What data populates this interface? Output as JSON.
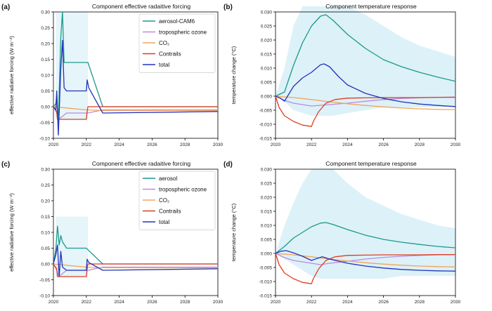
{
  "chart_data": [
    {
      "type": "line",
      "panel_label": "(a)",
      "title": "Component effective radaitive forcing",
      "ylabel": "effective radiative forcing (W m⁻²)",
      "xlim": [
        2020,
        2030
      ],
      "ylim": [
        -0.1,
        0.3
      ],
      "xticks": [
        "2020",
        "2022",
        "2024",
        "2026",
        "2028",
        "2030"
      ],
      "yticks": [
        "-0.10",
        "-0.05",
        "0.00",
        "0.05",
        "0.10",
        "0.15",
        "0.20",
        "0.25",
        "0.30"
      ],
      "legend": "top-right",
      "series": [
        {
          "name": "aerosol-CAM6",
          "color": "#1a9a8a",
          "x": [
            2020,
            2020.15,
            2020.2,
            2020.3,
            2020.45,
            2020.55,
            2020.65,
            2020.8,
            2022.0,
            2022.1,
            2023.0,
            2030
          ],
          "y": [
            0,
            0.01,
            0.04,
            -0.05,
            0.22,
            0.3,
            0.14,
            0.14,
            0.14,
            0.14,
            0.0,
            0.0
          ],
          "band": [
            -0.04,
            0.3
          ]
        },
        {
          "name": "tropospheric ozone",
          "color": "#b98be0",
          "x": [
            2020,
            2020.2,
            2020.3,
            2020.45,
            2020.8,
            2022.0,
            2022.1,
            2023.0,
            2030
          ],
          "y": [
            0,
            -0.02,
            -0.035,
            -0.035,
            -0.02,
            -0.02,
            -0.02,
            -0.01,
            -0.01
          ]
        },
        {
          "name": "CO₂",
          "color": "#f2a55a",
          "x": [
            2020,
            2021,
            2022,
            2023,
            2025,
            2027,
            2030
          ],
          "y": [
            0,
            -0.005,
            -0.01,
            -0.012,
            -0.012,
            -0.012,
            -0.012
          ]
        },
        {
          "name": "Contrails",
          "color": "#e03c1f",
          "x": [
            2020,
            2020.2,
            2020.25,
            2022.0,
            2022.05,
            2022.1,
            2030
          ],
          "y": [
            0,
            -0.015,
            -0.04,
            -0.04,
            -0.015,
            0.0,
            0.0
          ]
        },
        {
          "name": "total",
          "color": "#2233bb",
          "x": [
            2020,
            2020.15,
            2020.2,
            2020.3,
            2020.45,
            2020.55,
            2020.65,
            2020.8,
            2022.0,
            2022.05,
            2022.15,
            2023.0,
            2030
          ],
          "y": [
            0,
            -0.01,
            0.05,
            -0.09,
            0.12,
            0.21,
            0.06,
            0.05,
            0.05,
            0.085,
            0.06,
            -0.02,
            -0.015
          ]
        }
      ]
    },
    {
      "type": "line",
      "panel_label": "(b)",
      "title": "Component temperature response",
      "ylabel": "temperature change (°C)",
      "xlim": [
        2020,
        2030
      ],
      "ylim": [
        -0.015,
        0.03
      ],
      "xticks": [
        "2020",
        "2022",
        "2024",
        "2026",
        "2028",
        "2030"
      ],
      "yticks": [
        "-0.015",
        "-0.010",
        "-0.005",
        "0.000",
        "0.005",
        "0.010",
        "0.015",
        "0.020",
        "0.025",
        "0.030"
      ],
      "series": [
        {
          "color": "#1a9a8a",
          "x": [
            2020,
            2020.5,
            2021,
            2021.5,
            2022,
            2022.5,
            2022.8,
            2023.2,
            2024,
            2025,
            2026,
            2027,
            2028,
            2029,
            2030
          ],
          "y": [
            0,
            0.0015,
            0.011,
            0.019,
            0.025,
            0.0285,
            0.029,
            0.027,
            0.022,
            0.017,
            0.013,
            0.0105,
            0.0085,
            0.0068,
            0.0053
          ],
          "band_lower": [
            0,
            -0.002,
            -0.005,
            -0.006,
            -0.007,
            -0.007,
            -0.007,
            -0.007,
            -0.006,
            -0.005,
            -0.004,
            -0.004,
            -0.004,
            -0.004,
            -0.004
          ],
          "band_upper": [
            0,
            0.01,
            0.025,
            0.032,
            0.032,
            0.032,
            0.032,
            0.032,
            0.032,
            0.029,
            0.025,
            0.021,
            0.018,
            0.016,
            0.014
          ]
        },
        {
          "color": "#b98be0",
          "x": [
            2020,
            2020.5,
            2021,
            2022,
            2023,
            2024,
            2025,
            2026,
            2027,
            2028,
            2029,
            2030
          ],
          "y": [
            0,
            -0.0015,
            -0.0025,
            -0.0035,
            -0.003,
            -0.0025,
            -0.0018,
            -0.0012,
            -0.0008,
            -0.0006,
            -0.0004,
            -0.0003
          ]
        },
        {
          "color": "#f2a55a",
          "x": [
            2020,
            2021,
            2022,
            2023,
            2024,
            2025,
            2026,
            2027,
            2028,
            2029,
            2030
          ],
          "y": [
            0,
            -0.0005,
            -0.0012,
            -0.002,
            -0.0027,
            -0.0033,
            -0.0038,
            -0.0042,
            -0.0045,
            -0.0047,
            -0.0048
          ]
        },
        {
          "color": "#e03c1f",
          "x": [
            2020,
            2020.2,
            2020.5,
            2021,
            2021.5,
            2022,
            2022.1,
            2022.4,
            2022.8,
            2023.3,
            2024,
            2025,
            2026,
            2027,
            2028,
            2029,
            2030
          ],
          "y": [
            0,
            -0.004,
            -0.007,
            -0.009,
            -0.0103,
            -0.0108,
            -0.009,
            -0.0055,
            -0.0025,
            -0.0012,
            -0.0007,
            -0.0006,
            -0.0005,
            -0.0005,
            -0.0005,
            -0.0004,
            -0.0004
          ]
        },
        {
          "color": "#2233bb",
          "x": [
            2020,
            2020.3,
            2020.5,
            2021,
            2021.5,
            2022,
            2022.5,
            2022.7,
            2023,
            2023.5,
            2024,
            2025,
            2026,
            2027,
            2028,
            2029,
            2030
          ],
          "y": [
            0,
            -0.0008,
            -0.0018,
            0.0035,
            0.0065,
            0.0085,
            0.0112,
            0.0115,
            0.0105,
            0.007,
            0.004,
            0.001,
            -0.0008,
            -0.002,
            -0.0028,
            -0.0033,
            -0.0037
          ]
        }
      ]
    },
    {
      "type": "line",
      "panel_label": "(c)",
      "title": "Component effective radaitive forcing",
      "ylabel": "effective radiative forcing (W m⁻²)",
      "xlim": [
        2020,
        2030
      ],
      "ylim": [
        -0.1,
        0.3
      ],
      "xticks": [
        "2020",
        "2022",
        "2024",
        "2026",
        "2028",
        "2030"
      ],
      "yticks": [
        "-0.10",
        "-0.05",
        "0.00",
        "0.05",
        "0.10",
        "0.15",
        "0.20",
        "0.25",
        "0.30"
      ],
      "legend": "top-right",
      "series": [
        {
          "name": "aerosol",
          "color": "#1a9a8a",
          "x": [
            2020,
            2020.15,
            2020.25,
            2020.35,
            2020.45,
            2020.55,
            2020.8,
            2022.0,
            2022.1,
            2023.0,
            2030
          ],
          "y": [
            0,
            0.05,
            0.12,
            0.06,
            0.09,
            0.07,
            0.05,
            0.05,
            0.045,
            0.0,
            0.0
          ],
          "band": [
            -0.04,
            0.15
          ]
        },
        {
          "name": "tropospheric ozone",
          "color": "#b98be0",
          "x": [
            2020,
            2020.2,
            2020.3,
            2020.45,
            2020.8,
            2022.0,
            2022.1,
            2023.0,
            2030
          ],
          "y": [
            0,
            -0.02,
            -0.035,
            -0.035,
            -0.02,
            -0.02,
            -0.02,
            -0.01,
            -0.01
          ]
        },
        {
          "name": "CO₂",
          "color": "#f2a55a",
          "x": [
            2020,
            2021,
            2022,
            2023,
            2025,
            2027,
            2030
          ],
          "y": [
            0,
            -0.005,
            -0.01,
            -0.012,
            -0.012,
            -0.012,
            -0.012
          ]
        },
        {
          "name": "Contrails",
          "color": "#e03c1f",
          "x": [
            2020,
            2020.2,
            2020.25,
            2022.0,
            2022.05,
            2022.1,
            2030
          ],
          "y": [
            0,
            -0.015,
            -0.04,
            -0.04,
            -0.015,
            0.0,
            0.0
          ]
        },
        {
          "name": "total",
          "color": "#2233bb",
          "x": [
            2020,
            2020.15,
            2020.25,
            2020.35,
            2020.45,
            2020.55,
            2020.8,
            2022.0,
            2022.05,
            2022.15,
            2023.0,
            2030
          ],
          "y": [
            0,
            0.03,
            0.06,
            -0.04,
            0.04,
            -0.01,
            -0.02,
            -0.02,
            0.015,
            0.005,
            -0.02,
            -0.015
          ]
        }
      ]
    },
    {
      "type": "line",
      "panel_label": "(d)",
      "title": "Component temperature response",
      "ylabel": "temperature change (°C)",
      "xlim": [
        2020,
        2030
      ],
      "ylim": [
        -0.015,
        0.03
      ],
      "xticks": [
        "2020",
        "2022",
        "2024",
        "2026",
        "2028",
        "2030"
      ],
      "yticks": [
        "-0.015",
        "-0.010",
        "-0.005",
        "0.000",
        "0.005",
        "0.010",
        "0.015",
        "0.020",
        "0.025",
        "0.030"
      ],
      "series": [
        {
          "color": "#1a9a8a",
          "x": [
            2020,
            2020.5,
            2021,
            2021.5,
            2022,
            2022.5,
            2022.8,
            2023.2,
            2024,
            2025,
            2026,
            2027,
            2028,
            2029,
            2030
          ],
          "y": [
            0,
            0.0025,
            0.0055,
            0.0075,
            0.0095,
            0.0108,
            0.011,
            0.0103,
            0.0085,
            0.0065,
            0.005,
            0.004,
            0.0032,
            0.0025,
            0.002
          ],
          "band_lower": [
            0,
            -0.002,
            -0.004,
            -0.006,
            -0.008,
            -0.009,
            -0.009,
            -0.009,
            -0.009,
            -0.009,
            -0.009,
            -0.008,
            -0.008,
            -0.008,
            -0.008
          ],
          "band_upper": [
            0,
            0.01,
            0.018,
            0.025,
            0.03,
            0.03,
            0.03,
            0.03,
            0.025,
            0.02,
            0.017,
            0.014,
            0.012,
            0.01,
            0.009
          ]
        },
        {
          "color": "#b98be0",
          "x": [
            2020,
            2020.5,
            2021,
            2022,
            2022.5,
            2023,
            2024,
            2025,
            2026,
            2027,
            2028,
            2029,
            2030
          ],
          "y": [
            0,
            -0.0015,
            -0.0025,
            -0.0035,
            -0.004,
            -0.0035,
            -0.0028,
            -0.002,
            -0.0014,
            -0.001,
            -0.0007,
            -0.0005,
            -0.0004
          ]
        },
        {
          "color": "#f2a55a",
          "x": [
            2020,
            2021,
            2022,
            2023,
            2024,
            2025,
            2026,
            2027,
            2028,
            2029,
            2030
          ],
          "y": [
            0,
            -0.0005,
            -0.0012,
            -0.002,
            -0.0027,
            -0.0033,
            -0.0038,
            -0.0042,
            -0.0045,
            -0.0047,
            -0.0048
          ]
        },
        {
          "color": "#e03c1f",
          "x": [
            2020,
            2020.2,
            2020.5,
            2021,
            2021.5,
            2022,
            2022.1,
            2022.4,
            2022.8,
            2023.3,
            2024,
            2025,
            2026,
            2027,
            2028,
            2029,
            2030
          ],
          "y": [
            0,
            -0.004,
            -0.007,
            -0.009,
            -0.0103,
            -0.0108,
            -0.009,
            -0.0055,
            -0.0025,
            -0.0012,
            -0.0007,
            -0.0006,
            -0.0005,
            -0.0005,
            -0.0005,
            -0.0004,
            -0.0004
          ]
        },
        {
          "color": "#2233bb",
          "x": [
            2020,
            2020.3,
            2020.6,
            2021,
            2021.5,
            2022,
            2022.3,
            2022.6,
            2023,
            2024,
            2025,
            2026,
            2027,
            2028,
            2029,
            2030
          ],
          "y": [
            0,
            0.0008,
            0.001,
            0.0002,
            -0.001,
            -0.0025,
            -0.0018,
            -0.0012,
            -0.002,
            -0.0035,
            -0.0045,
            -0.0052,
            -0.0057,
            -0.006,
            -0.0062,
            -0.0063
          ]
        }
      ]
    }
  ]
}
